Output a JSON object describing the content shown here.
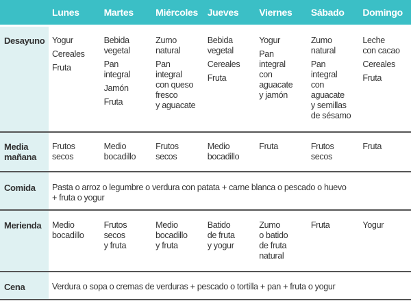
{
  "days": [
    "Lunes",
    "Martes",
    "Miércoles",
    "Jueves",
    "Viernes",
    "Sábado",
    "Domingo"
  ],
  "meals": {
    "desayuno": {
      "label": "Desayuno",
      "cells": [
        [
          "Yogur",
          "Cereales",
          "Fruta"
        ],
        [
          "Bebida\nvegetal",
          "Pan\nintegral",
          "Jamón",
          "Fruta"
        ],
        [
          "Zumo\nnatural",
          "Pan\nintegral\ncon queso\nfresco\ny aguacate"
        ],
        [
          "Bebida\nvegetal",
          "Cereales",
          "Fruta"
        ],
        [
          "Yogur",
          "Pan\nintegral\ncon\naguacate\ny jamón"
        ],
        [
          "Zumo\nnatural",
          "Pan\nintegral\ncon\naguacate\ny semillas\nde sésamo"
        ],
        [
          "Leche\ncon cacao",
          "Cereales",
          "Fruta"
        ]
      ]
    },
    "media_manana": {
      "label": "Media\nmañana",
      "cells": [
        "Frutos\nsecos",
        "Medio\nbocadillo",
        "Frutos\nsecos",
        "Medio\nbocadillo",
        "Fruta",
        "Frutos\nsecos",
        "Fruta"
      ]
    },
    "comida": {
      "label": "Comida",
      "text": "Pasta o arroz o legumbre o verdura con patata + carne blanca o pescado o huevo\n+ fruta o yogur"
    },
    "merienda": {
      "label": "Merienda",
      "cells": [
        "Medio\nbocadillo",
        "Frutos\nsecos\ny fruta",
        "Medio\nbocadillo\ny fruta",
        "Batido\nde fruta\ny yogur",
        "Zumo\no batido\nde fruta\nnatural",
        "Fruta",
        "Yogur"
      ]
    },
    "cena": {
      "label": "Cena",
      "text": "Verdura o sopa o cremas de verduras + pescado o tortilla + pan + fruta o yogur"
    }
  },
  "colors": {
    "header": "#3bbfc6",
    "label_column": "#dff1f2",
    "row_divider": "#555555"
  }
}
